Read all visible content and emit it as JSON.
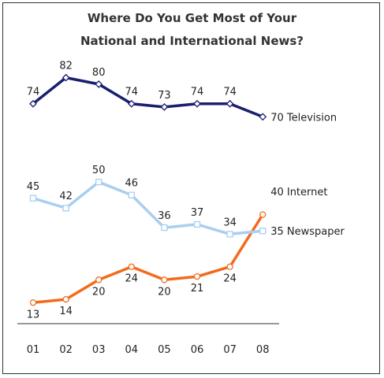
{
  "chart_data": {
    "type": "line",
    "title_lines": [
      "Where Do You Get Most of Your",
      "National and International News?"
    ],
    "categories": [
      "01",
      "02",
      "03",
      "04",
      "05",
      "06",
      "07",
      "08"
    ],
    "ylim": [
      10,
      85
    ],
    "grid": false,
    "legend": "end-of-line labels",
    "series": [
      {
        "name": "Television",
        "end_label": "70 Television",
        "color": "#1a1f6e",
        "marker": "diamond",
        "values": [
          74,
          82,
          80,
          74,
          73,
          74,
          74,
          70
        ]
      },
      {
        "name": "Internet",
        "end_label": "40 Internet",
        "color": "#f26b1d",
        "marker": "circle",
        "values": [
          13,
          14,
          20,
          24,
          20,
          21,
          24,
          40
        ]
      },
      {
        "name": "Newspaper",
        "end_label": "35 Newspaper",
        "color": "#a9cff0",
        "marker": "square",
        "values": [
          45,
          42,
          50,
          46,
          36,
          37,
          34,
          35
        ]
      }
    ]
  }
}
